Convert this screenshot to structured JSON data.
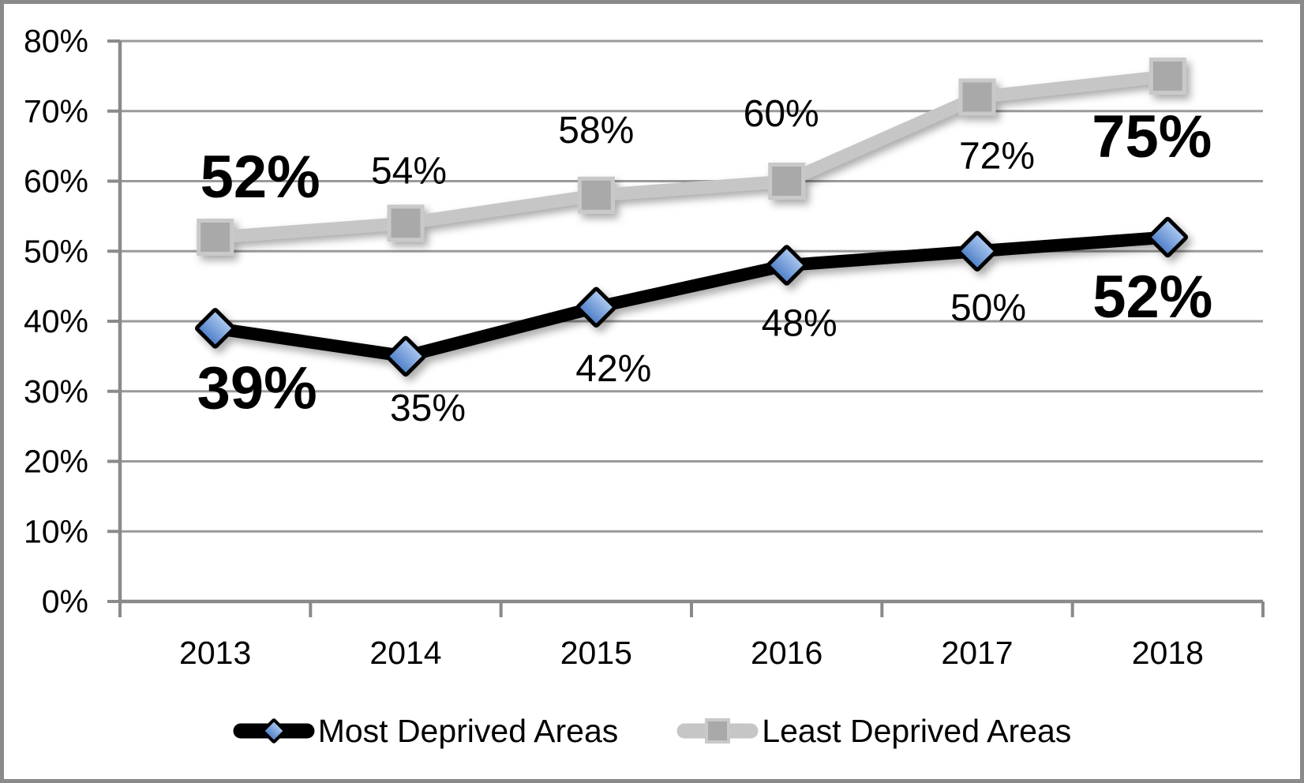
{
  "chart_data": {
    "type": "line",
    "x": [
      "2013",
      "2014",
      "2015",
      "2016",
      "2017",
      "2018"
    ],
    "series": [
      {
        "name": "Least Deprived Areas",
        "values": [
          52,
          54,
          58,
          60,
          72,
          75
        ],
        "labels": [
          "52%",
          "54%",
          "58%",
          "60%",
          "72%",
          "75%"
        ],
        "emphasized": [
          true,
          false,
          false,
          false,
          false,
          true
        ],
        "line_color": "#c6c6c6",
        "marker": "square",
        "marker_fill": "#a9a9a9",
        "marker_stroke": "#c9c9c9"
      },
      {
        "name": "Most Deprived Areas",
        "values": [
          39,
          35,
          42,
          48,
          50,
          52
        ],
        "labels": [
          "39%",
          "35%",
          "42%",
          "48%",
          "50%",
          "52%"
        ],
        "emphasized": [
          true,
          false,
          false,
          false,
          false,
          true
        ],
        "line_color": "#000000",
        "marker": "diamond",
        "marker_fill_top": "#aecaf2",
        "marker_fill_bottom": "#4d7ec6",
        "marker_stroke": "#000000"
      }
    ],
    "ylim": [
      0,
      80
    ],
    "ytick_labels": [
      "0%",
      "10%",
      "20%",
      "30%",
      "40%",
      "50%",
      "60%",
      "70%",
      "80%"
    ],
    "grid": true,
    "title": "",
    "xlabel": "",
    "ylabel": "",
    "legend_position": "bottom"
  },
  "legend": {
    "items": [
      {
        "label": "Most Deprived Areas",
        "marker": "diamond"
      },
      {
        "label": "Least Deprived Areas",
        "marker": "square"
      }
    ]
  },
  "frame_color": "#8a8a8a"
}
